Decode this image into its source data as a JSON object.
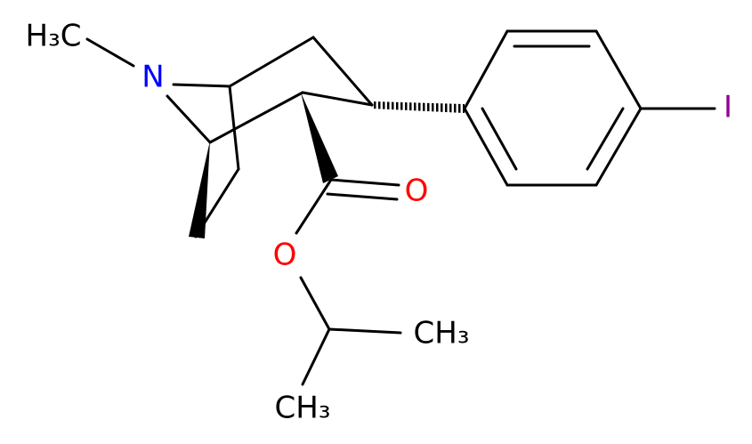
{
  "atoms": [
    {
      "label": "H₃C"
    },
    {
      "label": "N"
    },
    {
      "label": "I"
    },
    {
      "label": "O"
    },
    {
      "label": "O"
    },
    {
      "label": "CH₃"
    },
    {
      "label": "CH₃"
    }
  ]
}
